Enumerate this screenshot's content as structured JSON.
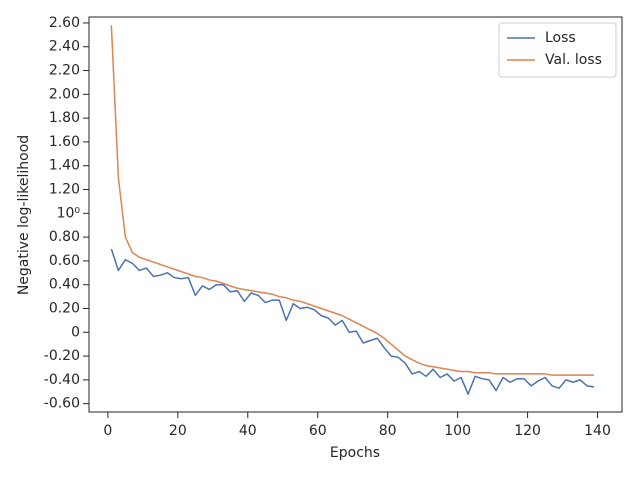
{
  "chart_data": {
    "type": "line",
    "xlabel": "Epochs",
    "ylabel": "Negative log-likelihood",
    "x": [
      1,
      3,
      5,
      7,
      9,
      11,
      13,
      15,
      17,
      19,
      21,
      23,
      25,
      27,
      29,
      31,
      33,
      35,
      37,
      39,
      41,
      43,
      45,
      47,
      49,
      51,
      53,
      55,
      57,
      59,
      61,
      63,
      65,
      67,
      69,
      71,
      73,
      75,
      77,
      79,
      81,
      83,
      85,
      87,
      89,
      91,
      93,
      95,
      97,
      99,
      101,
      103,
      105,
      107,
      109,
      111,
      113,
      115,
      117,
      119,
      121,
      123,
      125,
      127,
      129,
      131,
      133,
      135,
      137,
      139
    ],
    "series": [
      {
        "name": "Loss",
        "color": "#4c72b0",
        "values": [
          0.7,
          0.52,
          0.61,
          0.58,
          0.52,
          0.54,
          0.47,
          0.48,
          0.5,
          0.46,
          0.45,
          0.46,
          0.31,
          0.39,
          0.36,
          0.4,
          0.4,
          0.34,
          0.35,
          0.26,
          0.33,
          0.31,
          0.25,
          0.27,
          0.27,
          0.1,
          0.24,
          0.2,
          0.21,
          0.19,
          0.14,
          0.12,
          0.06,
          0.1,
          0.0,
          0.01,
          -0.09,
          -0.07,
          -0.05,
          -0.13,
          -0.2,
          -0.21,
          -0.26,
          -0.35,
          -0.33,
          -0.37,
          -0.31,
          -0.38,
          -0.35,
          -0.41,
          -0.38,
          -0.52,
          -0.37,
          -0.39,
          -0.4,
          -0.49,
          -0.38,
          -0.42,
          -0.39,
          -0.39,
          -0.45,
          -0.41,
          -0.38,
          -0.45,
          -0.47,
          -0.4,
          -0.42,
          -0.4,
          -0.45,
          -0.46
        ]
      },
      {
        "name": "Val. loss",
        "color": "#dd8452",
        "values": [
          2.58,
          1.3,
          0.8,
          0.67,
          0.63,
          0.61,
          0.59,
          0.57,
          0.55,
          0.53,
          0.51,
          0.49,
          0.47,
          0.46,
          0.44,
          0.43,
          0.41,
          0.39,
          0.37,
          0.36,
          0.35,
          0.34,
          0.33,
          0.32,
          0.3,
          0.29,
          0.27,
          0.26,
          0.24,
          0.22,
          0.2,
          0.18,
          0.16,
          0.14,
          0.11,
          0.08,
          0.05,
          0.02,
          -0.01,
          -0.05,
          -0.1,
          -0.15,
          -0.2,
          -0.23,
          -0.26,
          -0.28,
          -0.29,
          -0.3,
          -0.31,
          -0.32,
          -0.33,
          -0.33,
          -0.34,
          -0.34,
          -0.34,
          -0.35,
          -0.35,
          -0.35,
          -0.35,
          -0.35,
          -0.35,
          -0.35,
          -0.35,
          -0.36,
          -0.36,
          -0.36,
          -0.36,
          -0.36,
          -0.36,
          -0.36
        ]
      }
    ],
    "xlim": [
      -5.4,
      147
    ],
    "xticks": [
      0,
      20,
      40,
      60,
      80,
      100,
      120,
      140
    ],
    "ylim": [
      -0.67,
      2.65
    ],
    "yticks": [
      {
        "value": -0.6,
        "label": "-0.60"
      },
      {
        "value": -0.4,
        "label": "-0.40"
      },
      {
        "value": -0.2,
        "label": "-0.20"
      },
      0,
      {
        "value": 0.2,
        "label": "0.20"
      },
      {
        "value": 0.4,
        "label": "0.40"
      },
      {
        "value": 0.6,
        "label": "0.60"
      },
      {
        "value": 0.8,
        "label": "0.80"
      },
      {
        "value": 1,
        "label": "10⁰"
      },
      {
        "value": 1.2,
        "label": "1.20"
      },
      {
        "value": 1.4,
        "label": "1.40"
      },
      {
        "value": 1.6,
        "label": "1.60"
      },
      {
        "value": 1.8,
        "label": "1.80"
      },
      {
        "value": 2.0,
        "label": "2.00"
      },
      {
        "value": 2.2,
        "label": "2.20"
      },
      {
        "value": 2.4,
        "label": "2.40"
      },
      {
        "value": 2.6,
        "label": "2.60"
      }
    ],
    "grid": false,
    "legend": "upper right"
  }
}
